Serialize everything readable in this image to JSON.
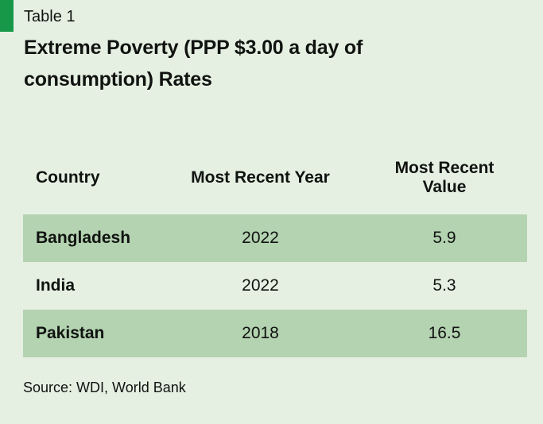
{
  "page": {
    "background_color": "#e5f0e2",
    "accent_color": "#179848",
    "stripe_color": "#b4d3b1",
    "text_color": "#101310"
  },
  "kicker": "Table 1",
  "title": "Extreme Poverty (PPP $3.00 a day of consumption) Rates",
  "table": {
    "columns": [
      "Country",
      "Most Recent Year",
      "Most Recent Value"
    ],
    "rows": [
      {
        "country": "Bangladesh",
        "year": "2022",
        "value": "5.9"
      },
      {
        "country": "India",
        "year": "2022",
        "value": "5.3"
      },
      {
        "country": "Pakistan",
        "year": "2018",
        "value": "16.5"
      }
    ]
  },
  "source": "Source: WDI, World Bank",
  "chart_data": {
    "type": "table",
    "title": "Extreme Poverty (PPP $3.00 a day of consumption) Rates",
    "columns": [
      "Country",
      "Most Recent Year",
      "Most Recent Value"
    ],
    "rows": [
      [
        "Bangladesh",
        2022,
        5.9
      ],
      [
        "India",
        2022,
        5.3
      ],
      [
        "Pakistan",
        2018,
        16.5
      ]
    ],
    "source": "Source: WDI, World Bank"
  }
}
